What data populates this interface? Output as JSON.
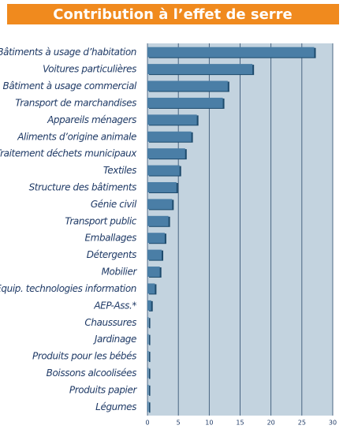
{
  "chart_data": {
    "type": "barh",
    "title": "Contribution à l’effet de serre",
    "categories": [
      "Bâtiments à usage d’habitation",
      "Voitures particulières",
      "Bâtiment à usage commercial",
      "Transport de marchandises",
      "Appareils ménagers",
      "Aliments d’origine animale",
      "Traitement déchets municipaux",
      "Textiles",
      "Structure des bâtiments",
      "Génie civil",
      "Transport public",
      "Emballages",
      "Détergents",
      "Mobilier",
      "Equip. technologies information",
      "AEP-Ass.*",
      "Chaussures",
      "Jardinage",
      "Produits pour les bébés",
      "Boissons alcoolisées",
      "Produits papier",
      "Légumes"
    ],
    "values": [
      27,
      17,
      13,
      12.2,
      8,
      7.1,
      6.1,
      5.2,
      4.7,
      4,
      3.4,
      2.8,
      2.3,
      2,
      1.2,
      0.6,
      0.2,
      0.2,
      0.2,
      0.2,
      0.2,
      0.2
    ],
    "color": "#4a7ea6",
    "xlim": [
      0,
      30
    ],
    "xticks": [
      0,
      5,
      10,
      15,
      20,
      25,
      30
    ],
    "grid": true
  }
}
